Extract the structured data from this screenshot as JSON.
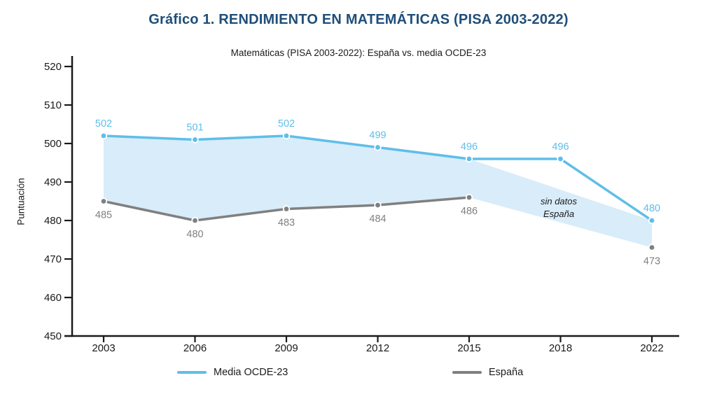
{
  "page": {
    "title": "Gráfico 1. RENDIMIENTO EN MATEMÁTICAS (PISA 2003-2022)",
    "title_color": "#1F4E79"
  },
  "chart_data": {
    "type": "line",
    "title": "Matemáticas (PISA 2003-2022): España vs. media OCDE-23",
    "xlabel": "",
    "ylabel": "Puntuación",
    "categories": [
      "2003",
      "2006",
      "2009",
      "2012",
      "2015",
      "2018",
      "2022"
    ],
    "ylim": [
      450,
      520
    ],
    "ytick_step": 10,
    "grid": false,
    "legend_position": "bottom",
    "axis_color": "#1a1a1a",
    "tick_label_color": "#1a1a1a",
    "series": [
      {
        "name": "Media OCDE-23",
        "color": "#5FBEE9",
        "values": [
          502,
          501,
          502,
          499,
          496,
          496,
          480
        ],
        "label_position": "above"
      },
      {
        "name": "España",
        "color": "#808080",
        "values": [
          485,
          480,
          483,
          484,
          486,
          null,
          473
        ],
        "label_position": "below"
      }
    ],
    "fill_between": {
      "series_a": 0,
      "series_b": 1,
      "color": "#D8ECF9"
    },
    "annotation": {
      "lines": [
        "sin datos",
        "España"
      ]
    }
  }
}
